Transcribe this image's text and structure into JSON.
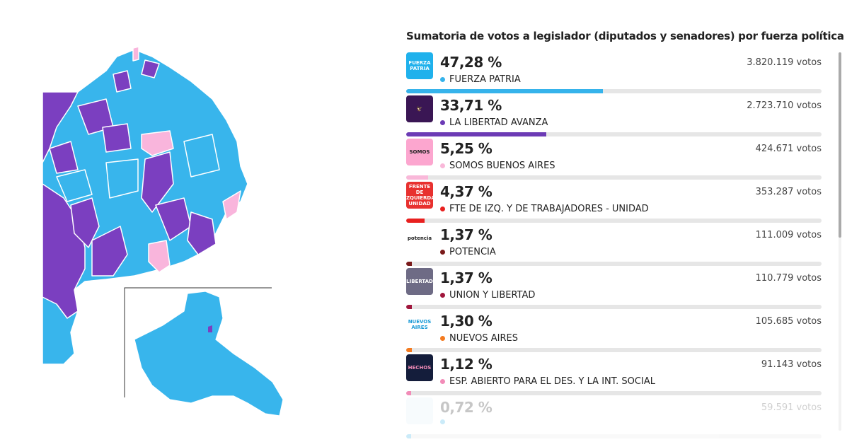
{
  "title": "Sumatoria de votos a legislador (diputados y senadores) por fuerza política",
  "parties": [
    {
      "pct": "47,28 %",
      "votes": "3.820.119 votos",
      "name": "FUERZA PATRIA",
      "color": "#36b3eb",
      "share": 47.28,
      "logo": "FUERZA PATRIA",
      "logo_bg": "#1fb1ec",
      "logo_fg": "#fff"
    },
    {
      "pct": "33,71 %",
      "votes": "2.723.710 votos",
      "name": "LA LIBERTAD AVANZA",
      "color": "#6c3bb5",
      "share": 33.71,
      "logo": "🦅",
      "logo_bg": "#3a1654",
      "logo_fg": "#fff"
    },
    {
      "pct": "5,25 %",
      "votes": "424.671 votos",
      "name": "SOMOS BUENOS AIRES",
      "color": "#f9b8d9",
      "share": 5.25,
      "logo": "SOMOS",
      "logo_bg": "#fca6cf",
      "logo_fg": "#222"
    },
    {
      "pct": "4,37 %",
      "votes": "353.287 votos",
      "name": "FTE DE IZQ. Y DE TRABAJADORES - UNIDAD",
      "color": "#e8201f",
      "share": 4.37,
      "logo": "FRENTE DE IZQUIERDA UNIDAD",
      "logo_bg": "#e8312f",
      "logo_fg": "#fff"
    },
    {
      "pct": "1,37 %",
      "votes": "111.009 votos",
      "name": "POTENCIA",
      "color": "#7a1a1a",
      "share": 1.37,
      "logo": "potencia",
      "logo_bg": "#fff",
      "logo_fg": "#222"
    },
    {
      "pct": "1,37 %",
      "votes": "110.779 votos",
      "name": "UNION Y LIBERTAD",
      "color": "#a0163c",
      "share": 1.37,
      "logo": "LIBERTAD",
      "logo_bg": "#6e6b85",
      "logo_fg": "#fff"
    },
    {
      "pct": "1,30 %",
      "votes": "105.685 votos",
      "name": "NUEVOS AIRES",
      "color": "#f47b20",
      "share": 1.3,
      "logo": "NUEVOS AIRES",
      "logo_bg": "#fff",
      "logo_fg": "#1a9ad6"
    },
    {
      "pct": "1,12 %",
      "votes": "91.143 votos",
      "name": "ESP. ABIERTO PARA EL DES. Y LA INT. SOCIAL",
      "color": "#f28cb8",
      "share": 1.12,
      "logo": "HECHOS",
      "logo_bg": "#141d3b",
      "logo_fg": "#f28cb8"
    },
    {
      "pct": "0,72 %",
      "votes": "59.591 votos",
      "name": "",
      "color": "#36b3eb",
      "share": 0.72,
      "logo": "",
      "logo_bg": "#e3f3fb",
      "logo_fg": "#fff"
    }
  ],
  "map": {
    "colors": {
      "fp": "#38b5ec",
      "lla": "#7b3fc0",
      "somos": "#f9b5dc"
    }
  }
}
